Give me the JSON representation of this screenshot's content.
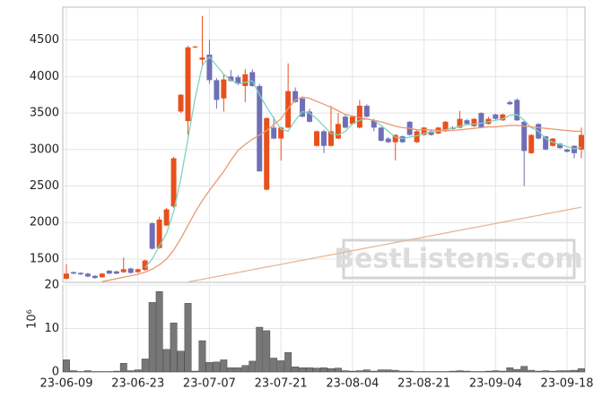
{
  "chart_data": {
    "type": "candlestick",
    "grid": true,
    "watermark": "BestListens.com",
    "categories": [
      "23-06-09",
      null,
      null,
      null,
      null,
      null,
      null,
      null,
      null,
      null,
      "23-06-23",
      null,
      null,
      null,
      null,
      null,
      null,
      null,
      null,
      null,
      "23-07-07",
      null,
      null,
      null,
      null,
      null,
      null,
      null,
      null,
      null,
      "23-07-21",
      null,
      null,
      null,
      null,
      null,
      null,
      null,
      null,
      null,
      "23-08-04",
      null,
      null,
      null,
      null,
      null,
      null,
      null,
      null,
      null,
      "23-08-21",
      null,
      null,
      null,
      null,
      null,
      null,
      null,
      null,
      null,
      "23-09-04",
      null,
      null,
      null,
      null,
      null,
      null,
      null,
      null,
      null,
      "23-09-18",
      null,
      null
    ],
    "price": {
      "ylim": [
        1180,
        4950
      ],
      "yticks": [
        1500,
        2000,
        2500,
        3000,
        3500,
        4000,
        4500
      ],
      "up_color": "#e8501c",
      "down_color": "#6f6fb8",
      "open": [
        1230,
        1320,
        1310,
        1300,
        1270,
        1250,
        1340,
        1330,
        1320,
        1370,
        1320,
        1350,
        1990,
        1650,
        1960,
        2220,
        3520,
        3390,
        4400,
        4230,
        4300,
        3950,
        3700,
        4000,
        3990,
        3870,
        4060,
        3870,
        2450,
        3300,
        3150,
        3300,
        3800,
        3700,
        3520,
        3050,
        3250,
        3050,
        3150,
        3450,
        3350,
        3300,
        3600,
        3400,
        3300,
        3150,
        3100,
        3180,
        3380,
        3100,
        3200,
        3250,
        3220,
        3250,
        3300,
        3300,
        3400,
        3320,
        3500,
        3350,
        3480,
        3400,
        3650,
        3680,
        3380,
        2950,
        3350,
        3180,
        3050,
        3080,
        3000,
        3050,
        3000
      ],
      "high": [
        1430,
        1330,
        1320,
        1310,
        1280,
        1310,
        1350,
        1340,
        1520,
        1380,
        1370,
        1490,
        2000,
        2080,
        2200,
        2900,
        3760,
        4420,
        4420,
        4830,
        4500,
        3980,
        4030,
        4090,
        4020,
        4100,
        4100,
        3900,
        3440,
        3450,
        3310,
        4180,
        3850,
        3720,
        3560,
        3260,
        3270,
        3600,
        3500,
        3470,
        3460,
        3680,
        3620,
        3420,
        3310,
        3170,
        3210,
        3190,
        3390,
        3260,
        3310,
        3260,
        3310,
        3390,
        3320,
        3530,
        3420,
        3430,
        3510,
        3450,
        3490,
        3490,
        3670,
        3700,
        3390,
        3210,
        3360,
        3190,
        3160,
        3090,
        3010,
        3060,
        3300
      ],
      "low": [
        1220,
        1290,
        1280,
        1250,
        1230,
        1240,
        1290,
        1290,
        1310,
        1300,
        1310,
        1340,
        1630,
        1640,
        1950,
        2200,
        3500,
        3200,
        4390,
        4150,
        3900,
        3560,
        3520,
        3930,
        3880,
        3650,
        3860,
        2700,
        2440,
        3140,
        2850,
        3290,
        3640,
        3440,
        3370,
        3040,
        2950,
        3040,
        3140,
        3290,
        3340,
        3290,
        3440,
        3250,
        3110,
        3090,
        2850,
        3090,
        3190,
        3090,
        3190,
        3190,
        3210,
        3240,
        3270,
        3290,
        3340,
        3310,
        3290,
        3340,
        3410,
        3390,
        3610,
        3390,
        2500,
        2940,
        3140,
        2990,
        3040,
        3010,
        2960,
        2880,
        2880
      ],
      "close": [
        1300,
        1300,
        1290,
        1260,
        1240,
        1300,
        1300,
        1300,
        1360,
        1310,
        1360,
        1480,
        1640,
        2040,
        2180,
        2880,
        3750,
        4400,
        4410,
        4260,
        3950,
        3680,
        3960,
        3940,
        3900,
        4030,
        3870,
        2700,
        3430,
        3150,
        3300,
        3800,
        3650,
        3450,
        3380,
        3250,
        3050,
        3250,
        3350,
        3300,
        3450,
        3600,
        3450,
        3300,
        3120,
        3100,
        3200,
        3100,
        3200,
        3250,
        3300,
        3200,
        3300,
        3380,
        3280,
        3420,
        3350,
        3420,
        3300,
        3420,
        3420,
        3480,
        3620,
        3400,
        2980,
        3200,
        3150,
        3000,
        3150,
        3020,
        2970,
        2950,
        3200
      ]
    },
    "series": [
      {
        "color": "#7fd3bd",
        "values": [
          null,
          null,
          null,
          null,
          null,
          null,
          null,
          null,
          null,
          null,
          null,
          1380,
          1500,
          1680,
          1850,
          2150,
          2600,
          3150,
          3700,
          4150,
          4270,
          4150,
          4030,
          3950,
          3900,
          3920,
          3940,
          3750,
          3580,
          3430,
          3280,
          3250,
          3400,
          3520,
          3500,
          3420,
          3320,
          3220,
          3200,
          3250,
          3350,
          3400,
          3420,
          3400,
          3330,
          3250,
          3170,
          3150,
          3170,
          3190,
          3220,
          3240,
          3250,
          3270,
          3290,
          3320,
          3340,
          3350,
          3360,
          3380,
          3400,
          3420,
          3470,
          3480,
          3400,
          3300,
          3250,
          3150,
          3100,
          3070,
          3040,
          3010,
          3030
        ]
      },
      {
        "color": "#e89a72",
        "values": [
          null,
          null,
          null,
          null,
          null,
          1190,
          1210,
          1230,
          1250,
          1270,
          1290,
          1320,
          1360,
          1420,
          1500,
          1620,
          1780,
          1960,
          2140,
          2300,
          2440,
          2570,
          2700,
          2850,
          2990,
          3070,
          3140,
          3200,
          3260,
          3340,
          3420,
          3560,
          3680,
          3720,
          3700,
          3660,
          3620,
          3580,
          3530,
          3480,
          3460,
          3440,
          3420,
          3400,
          3380,
          3350,
          3320,
          3300,
          3290,
          3270,
          3270,
          3270,
          3260,
          3260,
          3260,
          3270,
          3280,
          3290,
          3300,
          3310,
          3310,
          3320,
          3330,
          3330,
          3320,
          3310,
          3300,
          3290,
          3280,
          3270,
          3260,
          3250,
          3250
        ]
      },
      {
        "color": "#e8b696",
        "values": [
          null,
          null,
          null,
          null,
          null,
          null,
          null,
          null,
          null,
          null,
          null,
          null,
          null,
          null,
          null,
          null,
          null,
          1185,
          1204,
          1222,
          1241,
          1260,
          1278,
          1297,
          1316,
          1334,
          1353,
          1371,
          1390,
          1409,
          1427,
          1446,
          1465,
          1483,
          1502,
          1521,
          1539,
          1558,
          1576,
          1595,
          1614,
          1632,
          1651,
          1670,
          1688,
          1707,
          1726,
          1744,
          1763,
          1781,
          1800,
          1819,
          1837,
          1856,
          1875,
          1893,
          1912,
          1931,
          1949,
          1968,
          1986,
          2005,
          2024,
          2042,
          2061,
          2080,
          2098,
          2117,
          2136,
          2154,
          2173,
          2192,
          2210
        ]
      }
    ],
    "volume": {
      "color": "#777777",
      "unit_label": "10⁶",
      "ylim": [
        0,
        20
      ],
      "yticks": [
        0,
        10,
        20
      ],
      "values": [
        2.8,
        0.3,
        0.1,
        0.3,
        0.1,
        0.1,
        0.1,
        0.2,
        2.0,
        0.3,
        0.5,
        3.0,
        16,
        18.5,
        5.2,
        11.3,
        4.8,
        15.8,
        0.2,
        7.2,
        2.2,
        2.3,
        2.8,
        1.0,
        1.0,
        1.5,
        2.5,
        10.3,
        9.5,
        3.2,
        2.6,
        4.5,
        1.2,
        1.0,
        1.0,
        0.9,
        1.0,
        0.8,
        0.9,
        0.3,
        0.2,
        0.3,
        0.5,
        0.2,
        0.5,
        0.5,
        0.4,
        0.2,
        0.2,
        0.1,
        0.1,
        0.1,
        0.1,
        0.1,
        0.2,
        0.3,
        0.2,
        0.1,
        0.1,
        0.2,
        0.3,
        0.2,
        1.0,
        0.6,
        1.3,
        0.4,
        0.2,
        0.3,
        0.2,
        0.3,
        0.3,
        0.4,
        0.8
      ]
    }
  }
}
